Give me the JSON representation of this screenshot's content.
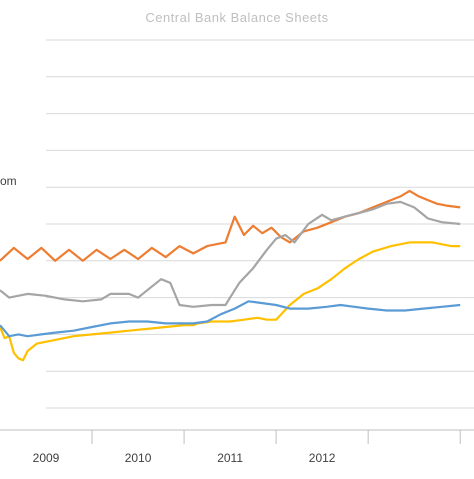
{
  "chart_data": {
    "type": "line",
    "title": "Central Bank Balance Sheets",
    "partial_label": "om",
    "xlabel": "",
    "ylabel": "",
    "xlim": [
      2008.0,
      2013.15
    ],
    "ylim": [
      0,
      10
    ],
    "x_ticks": [
      {
        "label": "2009",
        "value": 2008.5
      },
      {
        "label": "2010",
        "value": 2009.5
      },
      {
        "label": "2011",
        "value": 2010.5
      },
      {
        "label": "2012",
        "value": 2011.5
      }
    ],
    "year_dividers": [
      2009,
      2010,
      2011,
      2012,
      2013
    ],
    "grid": true,
    "legend": "none",
    "series": [
      {
        "color": "#ED7D31",
        "values": [
          [
            2008.0,
            4.0
          ],
          [
            2008.15,
            4.35
          ],
          [
            2008.3,
            4.05
          ],
          [
            2008.45,
            4.35
          ],
          [
            2008.6,
            4.0
          ],
          [
            2008.75,
            4.3
          ],
          [
            2008.9,
            4.0
          ],
          [
            2009.05,
            4.3
          ],
          [
            2009.2,
            4.05
          ],
          [
            2009.35,
            4.3
          ],
          [
            2009.5,
            4.05
          ],
          [
            2009.65,
            4.35
          ],
          [
            2009.8,
            4.1
          ],
          [
            2009.95,
            4.4
          ],
          [
            2010.1,
            4.2
          ],
          [
            2010.25,
            4.4
          ],
          [
            2010.35,
            4.45
          ],
          [
            2010.45,
            4.5
          ],
          [
            2010.55,
            5.2
          ],
          [
            2010.65,
            4.7
          ],
          [
            2010.75,
            4.95
          ],
          [
            2010.85,
            4.75
          ],
          [
            2010.95,
            4.9
          ],
          [
            2011.05,
            4.65
          ],
          [
            2011.15,
            4.5
          ],
          [
            2011.3,
            4.8
          ],
          [
            2011.45,
            4.9
          ],
          [
            2011.6,
            5.05
          ],
          [
            2011.75,
            5.2
          ],
          [
            2011.9,
            5.3
          ],
          [
            2012.05,
            5.45
          ],
          [
            2012.2,
            5.6
          ],
          [
            2012.35,
            5.75
          ],
          [
            2012.45,
            5.9
          ],
          [
            2012.55,
            5.75
          ],
          [
            2012.65,
            5.65
          ],
          [
            2012.75,
            5.55
          ],
          [
            2012.85,
            5.5
          ],
          [
            2013.0,
            5.45
          ]
        ]
      },
      {
        "color": "#A5A5A5",
        "values": [
          [
            2008.0,
            3.2
          ],
          [
            2008.1,
            3.0
          ],
          [
            2008.3,
            3.1
          ],
          [
            2008.5,
            3.05
          ],
          [
            2008.7,
            2.95
          ],
          [
            2008.9,
            2.9
          ],
          [
            2009.1,
            2.95
          ],
          [
            2009.2,
            3.1
          ],
          [
            2009.4,
            3.1
          ],
          [
            2009.5,
            3.0
          ],
          [
            2009.6,
            3.2
          ],
          [
            2009.75,
            3.5
          ],
          [
            2009.85,
            3.4
          ],
          [
            2009.95,
            2.8
          ],
          [
            2010.1,
            2.75
          ],
          [
            2010.3,
            2.8
          ],
          [
            2010.45,
            2.8
          ],
          [
            2010.5,
            3.0
          ],
          [
            2010.6,
            3.4
          ],
          [
            2010.75,
            3.8
          ],
          [
            2010.9,
            4.3
          ],
          [
            2011.0,
            4.6
          ],
          [
            2011.1,
            4.7
          ],
          [
            2011.2,
            4.5
          ],
          [
            2011.35,
            5.0
          ],
          [
            2011.5,
            5.25
          ],
          [
            2011.6,
            5.1
          ],
          [
            2011.75,
            5.2
          ],
          [
            2011.9,
            5.3
          ],
          [
            2012.05,
            5.4
          ],
          [
            2012.2,
            5.55
          ],
          [
            2012.35,
            5.6
          ],
          [
            2012.5,
            5.45
          ],
          [
            2012.65,
            5.15
          ],
          [
            2012.8,
            5.05
          ],
          [
            2013.0,
            5.0
          ]
        ]
      },
      {
        "color": "#FFC000",
        "values": [
          [
            2008.0,
            2.2
          ],
          [
            2008.05,
            1.9
          ],
          [
            2008.1,
            1.95
          ],
          [
            2008.15,
            1.5
          ],
          [
            2008.2,
            1.35
          ],
          [
            2008.25,
            1.3
          ],
          [
            2008.3,
            1.55
          ],
          [
            2008.4,
            1.75
          ],
          [
            2008.6,
            1.85
          ],
          [
            2008.8,
            1.95
          ],
          [
            2009.0,
            2.0
          ],
          [
            2009.2,
            2.05
          ],
          [
            2009.4,
            2.1
          ],
          [
            2009.6,
            2.15
          ],
          [
            2009.8,
            2.2
          ],
          [
            2010.0,
            2.25
          ],
          [
            2010.1,
            2.25
          ],
          [
            2010.15,
            2.3
          ],
          [
            2010.3,
            2.35
          ],
          [
            2010.5,
            2.35
          ],
          [
            2010.65,
            2.4
          ],
          [
            2010.8,
            2.45
          ],
          [
            2010.9,
            2.4
          ],
          [
            2011.0,
            2.4
          ],
          [
            2011.15,
            2.8
          ],
          [
            2011.3,
            3.1
          ],
          [
            2011.45,
            3.25
          ],
          [
            2011.6,
            3.5
          ],
          [
            2011.75,
            3.8
          ],
          [
            2011.9,
            4.05
          ],
          [
            2012.05,
            4.25
          ],
          [
            2012.25,
            4.4
          ],
          [
            2012.45,
            4.5
          ],
          [
            2012.7,
            4.5
          ],
          [
            2012.9,
            4.4
          ],
          [
            2013.0,
            4.4
          ]
        ]
      },
      {
        "color": "#5B9BD5",
        "values": [
          [
            2008.0,
            2.25
          ],
          [
            2008.1,
            1.95
          ],
          [
            2008.2,
            2.0
          ],
          [
            2008.3,
            1.95
          ],
          [
            2008.45,
            2.0
          ],
          [
            2008.6,
            2.05
          ],
          [
            2008.8,
            2.1
          ],
          [
            2009.0,
            2.2
          ],
          [
            2009.2,
            2.3
          ],
          [
            2009.4,
            2.35
          ],
          [
            2009.6,
            2.35
          ],
          [
            2009.8,
            2.3
          ],
          [
            2010.0,
            2.3
          ],
          [
            2010.1,
            2.3
          ],
          [
            2010.25,
            2.35
          ],
          [
            2010.4,
            2.55
          ],
          [
            2010.55,
            2.7
          ],
          [
            2010.7,
            2.9
          ],
          [
            2010.85,
            2.85
          ],
          [
            2011.0,
            2.8
          ],
          [
            2011.15,
            2.7
          ],
          [
            2011.35,
            2.7
          ],
          [
            2011.55,
            2.75
          ],
          [
            2011.7,
            2.8
          ],
          [
            2011.85,
            2.75
          ],
          [
            2012.0,
            2.7
          ],
          [
            2012.2,
            2.65
          ],
          [
            2012.4,
            2.65
          ],
          [
            2012.6,
            2.7
          ],
          [
            2012.8,
            2.75
          ],
          [
            2013.0,
            2.8
          ]
        ]
      }
    ]
  }
}
